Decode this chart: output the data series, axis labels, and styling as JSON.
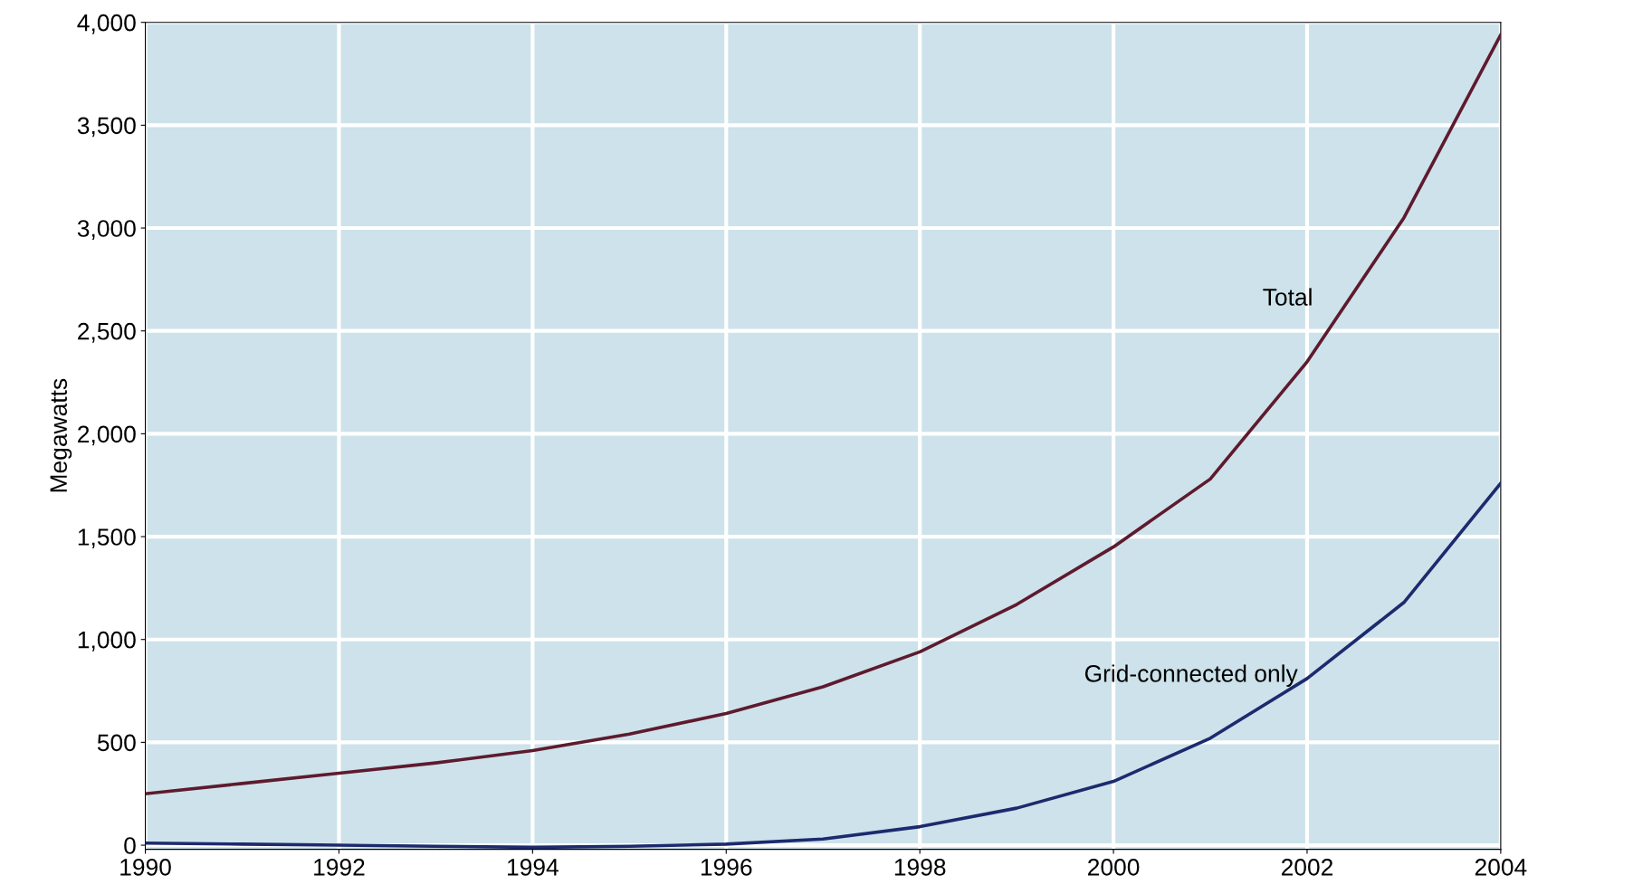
{
  "chart_data": {
    "type": "line",
    "ylabel": "Megawatts",
    "x": [
      1990,
      1991,
      1992,
      1993,
      1994,
      1995,
      1996,
      1997,
      1998,
      1999,
      2000,
      2001,
      2002,
      2003,
      2004
    ],
    "series": [
      {
        "name": "Total",
        "color": "#5e1a2e",
        "values": [
          250,
          300,
          350,
          400,
          460,
          540,
          640,
          770,
          940,
          1170,
          1450,
          1780,
          2350,
          3050,
          3940
        ]
      },
      {
        "name": "Grid-connected only",
        "color": "#1c2a6e",
        "values": [
          10,
          5,
          0,
          -5,
          -10,
          -5,
          5,
          30,
          90,
          180,
          310,
          520,
          810,
          1180,
          1760
        ]
      }
    ],
    "xlim": [
      1990,
      2004
    ],
    "xticks": [
      1990,
      1992,
      1994,
      1996,
      1998,
      2000,
      2002,
      2004
    ],
    "ylim": [
      -20,
      4000
    ],
    "yticks": [
      {
        "value": 0,
        "label": "0"
      },
      {
        "value": 500,
        "label": "500"
      },
      {
        "value": 1000,
        "label": "1,000"
      },
      {
        "value": 1500,
        "label": "1,500"
      },
      {
        "value": 2000,
        "label": "2,000"
      },
      {
        "value": 2500,
        "label": "2,500"
      },
      {
        "value": 3000,
        "label": "3,000"
      },
      {
        "value": 3500,
        "label": "3,500"
      },
      {
        "value": 4000,
        "label": "4,000"
      }
    ],
    "grid": true,
    "marker": "none",
    "line_style": "solid"
  }
}
